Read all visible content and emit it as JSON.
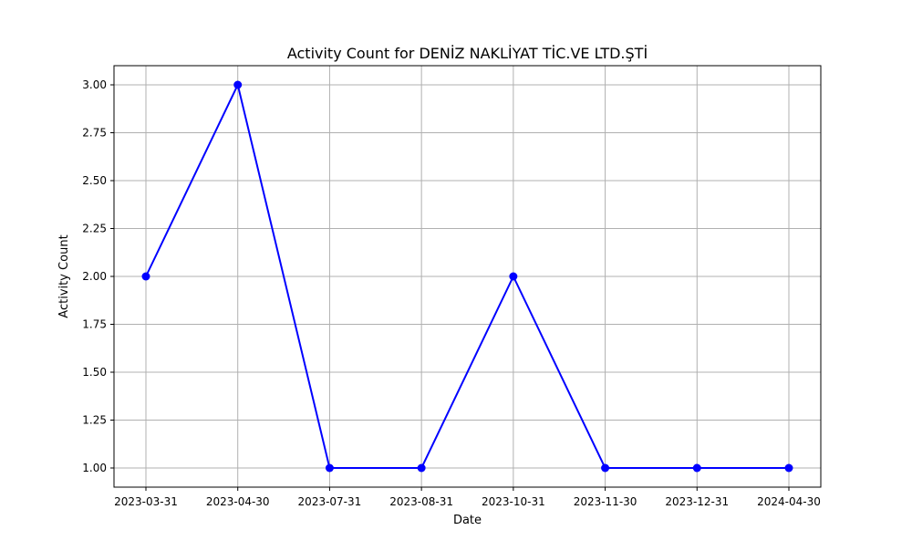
{
  "chart_data": {
    "type": "line",
    "title": "Activity Count for DENİZ NAKLİYAT  TİC.VE LTD.ŞTİ",
    "xlabel": "Date",
    "ylabel": "Activity Count",
    "categories": [
      "2023-03-31",
      "2023-04-30",
      "2023-07-31",
      "2023-08-31",
      "2023-10-31",
      "2023-11-30",
      "2023-12-31",
      "2024-04-30"
    ],
    "values": [
      2,
      3,
      1,
      1,
      2,
      1,
      1,
      1
    ],
    "ylim": [
      0.9,
      3.1
    ],
    "yticks": [
      "1.00",
      "1.25",
      "1.50",
      "1.75",
      "2.00",
      "2.25",
      "2.50",
      "2.75",
      "3.00"
    ],
    "grid": true,
    "marker": "circle",
    "line_color": "#0000ff"
  }
}
